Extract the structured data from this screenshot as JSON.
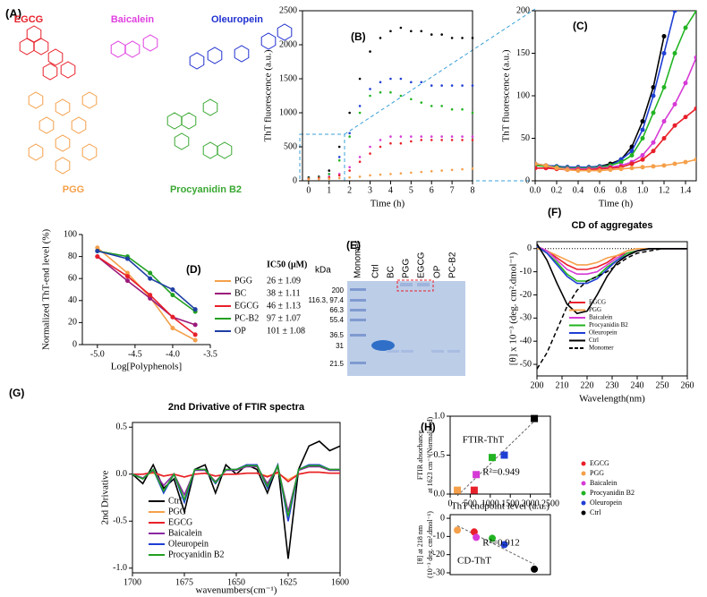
{
  "structures": {
    "label": "(A)",
    "names": [
      {
        "text": "EGCG",
        "color": "#e8202a"
      },
      {
        "text": "Baicalein",
        "color": "#e040e0"
      },
      {
        "text": "Oleuropein",
        "color": "#2030d0"
      },
      {
        "text": "PGG",
        "color": "#f5a04a"
      },
      {
        "text": "Procyanidin B2",
        "color": "#3aa832"
      }
    ]
  },
  "gel": {
    "label": "(E)",
    "unit": "kDa",
    "markers": [
      "200",
      "116.3, 97.4",
      "66.3",
      "55.4",
      "36.5",
      "31",
      "21.5"
    ],
    "lanes": [
      "Monomer",
      "Ctrl",
      "BC",
      "PGG",
      "EGCG",
      "OP",
      "PC-B2"
    ]
  },
  "chart_data": [
    {
      "type": "scatter",
      "label": "(B)",
      "xlabel": "Time (h)",
      "ylabel": "ThT fluorescence (a.u.)",
      "xlim": [
        -0.3,
        8
      ],
      "ylim": [
        0,
        2500
      ],
      "xticks": [
        0,
        1,
        2,
        3,
        4,
        5,
        6,
        7,
        8
      ],
      "yticks": [
        0,
        500,
        1000,
        1500,
        2000,
        2500
      ],
      "x": [
        0,
        0.5,
        1,
        1.5,
        2,
        2.5,
        3,
        3.5,
        4,
        4.5,
        5,
        5.5,
        6,
        6.5,
        7,
        7.5,
        8
      ],
      "series": [
        {
          "color": "#000000",
          "values": [
            50,
            60,
            150,
            500,
            1000,
            1500,
            1900,
            2100,
            2200,
            2250,
            2200,
            2200,
            2150,
            2150,
            2100,
            2100,
            2100
          ]
        },
        {
          "color": "#1f3fd4",
          "values": [
            40,
            50,
            100,
            350,
            700,
            1100,
            1350,
            1450,
            1500,
            1500,
            1450,
            1450,
            1400,
            1400,
            1400,
            1400,
            1400
          ]
        },
        {
          "color": "#22b422",
          "values": [
            40,
            50,
            100,
            300,
            650,
            1000,
            1250,
            1300,
            1300,
            1250,
            1200,
            1150,
            1100,
            1100,
            1050,
            1050,
            1000
          ]
        },
        {
          "color": "#d63ad6",
          "values": [
            30,
            40,
            60,
            100,
            200,
            350,
            500,
            600,
            650,
            650,
            650,
            650,
            650,
            650,
            650,
            650,
            650
          ]
        },
        {
          "color": "#e8202a",
          "values": [
            30,
            40,
            50,
            80,
            150,
            280,
            400,
            500,
            550,
            550,
            580,
            600,
            600,
            600,
            600,
            600,
            600
          ]
        },
        {
          "color": "#f5a04a",
          "values": [
            20,
            25,
            30,
            40,
            50,
            60,
            80,
            90,
            100,
            110,
            120,
            130,
            140,
            150,
            160,
            170,
            180
          ]
        }
      ]
    },
    {
      "type": "line",
      "label": "(C)",
      "xlabel": "Time (h)",
      "ylabel": "ThT fluorescence (a.u.)",
      "xlim": [
        0,
        1.5
      ],
      "ylim": [
        0,
        200
      ],
      "xticks": [
        {
          "value": 0,
          "label": "0.0"
        },
        0.2,
        0.4,
        0.6,
        0.8,
        {
          "value": 1,
          "label": "1.0"
        },
        1.2,
        1.4
      ],
      "yticks": [
        0,
        50,
        100,
        150,
        200
      ],
      "x": [
        0,
        0.1,
        0.2,
        0.3,
        0.4,
        0.5,
        0.6,
        0.7,
        0.8,
        0.9,
        1,
        1.1,
        1.2,
        1.3,
        1.4,
        1.5
      ],
      "series": [
        {
          "color": "#000000",
          "values": [
            20,
            18,
            17,
            16,
            16,
            16,
            17,
            20,
            25,
            40,
            70,
            110,
            170,
            null,
            null,
            null
          ]
        },
        {
          "color": "#1f3fd4",
          "values": [
            20,
            18,
            17,
            16,
            16,
            16,
            17,
            18,
            25,
            35,
            60,
            100,
            150,
            200,
            null,
            null
          ]
        },
        {
          "color": "#22b422",
          "values": [
            18,
            17,
            16,
            15,
            15,
            15,
            16,
            18,
            22,
            30,
            50,
            80,
            110,
            150,
            180,
            200
          ]
        },
        {
          "color": "#d63ad6",
          "values": [
            15,
            15,
            15,
            14,
            14,
            14,
            15,
            16,
            18,
            22,
            30,
            45,
            70,
            90,
            115,
            145
          ]
        },
        {
          "color": "#e8202a",
          "values": [
            15,
            15,
            14,
            13,
            13,
            13,
            14,
            15,
            16,
            20,
            25,
            35,
            50,
            65,
            75,
            85
          ]
        },
        {
          "color": "#f5a04a",
          "values": [
            20,
            18,
            15,
            13,
            12,
            12,
            12,
            13,
            14,
            15,
            16,
            17,
            18,
            20,
            22,
            25
          ]
        }
      ]
    },
    {
      "type": "line",
      "label": "(D)",
      "xlabel": "Log[Polyphenols]",
      "ylabel": "Normalized ThT-end level (%)",
      "xlim": [
        -5.2,
        -3.5
      ],
      "ylim": [
        0,
        100
      ],
      "xticks": [
        {
          "value": -5,
          "label": "-5.0"
        },
        -4.5,
        {
          "value": -4,
          "label": "-4.0"
        },
        -3.5
      ],
      "yticks": [
        0,
        20,
        40,
        60,
        80,
        100
      ],
      "ic50_title": "IC50 (μM)",
      "x": [
        -5,
        -4.6,
        -4.3,
        -4,
        -3.7
      ],
      "series": [
        {
          "name": "PGG",
          "ic50": "26 ± 1.09",
          "color": "#f5a04a",
          "values": [
            88,
            65,
            43,
            15,
            4
          ]
        },
        {
          "name": "BC",
          "ic50": "38 ± 1.11",
          "color": "#9a1a7a",
          "values": [
            80,
            58,
            42,
            25,
            18
          ]
        },
        {
          "name": "EGCG",
          "ic50": "46 ± 1.13",
          "color": "#e8202a",
          "values": [
            80,
            62,
            45,
            25,
            9
          ]
        },
        {
          "name": "PC-B2",
          "ic50": "97 ± 1.07",
          "color": "#22a022",
          "values": [
            85,
            80,
            65,
            45,
            30
          ]
        },
        {
          "name": "OP",
          "ic50": "101 ± 1.08",
          "color": "#1f3fa4",
          "values": [
            85,
            78,
            60,
            50,
            32
          ]
        }
      ]
    },
    {
      "type": "line",
      "label": "(F)",
      "title": "CD of aggregates",
      "xlabel": "Wavelength(nm)",
      "ylabel": "[θ] x 10⁻³ (deg. cm².dmol⁻¹)",
      "xlim": [
        200,
        260
      ],
      "ylim": [
        -55,
        3
      ],
      "zero_line": true,
      "xticks": [
        200,
        210,
        220,
        230,
        240,
        250,
        260
      ],
      "yticks": [
        0,
        -10,
        -20,
        -30,
        -40,
        -50
      ],
      "x": [
        200,
        204,
        208,
        212,
        216,
        220,
        224,
        228,
        232,
        236,
        240,
        245,
        250,
        255,
        260
      ],
      "series": [
        {
          "name": "EGCG",
          "color": "#e8202a",
          "values": [
            1,
            -1,
            -4,
            -7,
            -9,
            -9,
            -8,
            -6,
            -3,
            -2,
            -1,
            0,
            0,
            0,
            0
          ]
        },
        {
          "name": "PGG",
          "color": "#f5a04a",
          "values": [
            0,
            -1,
            -3,
            -5,
            -7,
            -7,
            -6,
            -4,
            -3,
            -1,
            0,
            0,
            0,
            0,
            0
          ]
        },
        {
          "name": "Baicalein",
          "color": "#d63ad6",
          "values": [
            1,
            -1,
            -5,
            -9,
            -11,
            -11,
            -10,
            -7,
            -4,
            -2,
            -1,
            0,
            0,
            0,
            0
          ]
        },
        {
          "name": "Procyanidin B2",
          "color": "#22b422",
          "values": [
            1,
            -2,
            -6,
            -11,
            -14,
            -14,
            -12,
            -8,
            -5,
            -2,
            -1,
            0,
            0,
            0,
            0
          ]
        },
        {
          "name": "Oleuropein",
          "color": "#1f3fd4",
          "values": [
            1,
            -2,
            -7,
            -12,
            -15,
            -15,
            -13,
            -9,
            -5,
            -3,
            -1,
            0,
            0,
            0,
            0
          ]
        },
        {
          "name": "Ctrl",
          "color": "#000000",
          "values": [
            2,
            -5,
            -15,
            -24,
            -28,
            -27,
            -20,
            -12,
            -6,
            -3,
            -1,
            0,
            0,
            0,
            0
          ]
        },
        {
          "name": "Monomer",
          "color": "#000000",
          "dash": true,
          "values": [
            -52,
            -45,
            -35,
            -25,
            -18,
            -14,
            -12,
            -10,
            -7,
            -4,
            -2,
            -1,
            0,
            0,
            0
          ]
        }
      ]
    },
    {
      "type": "line",
      "label": "(G)",
      "title": "2nd Drivative of FTIR spectra",
      "xlabel": "wavenumbers(cm⁻¹)",
      "ylabel": "2nd Drivative",
      "xlim": [
        1700,
        1600
      ],
      "ylim": [
        -1.05,
        0.55
      ],
      "xticks": [
        1700,
        1675,
        1650,
        1625,
        1600
      ],
      "yticks": [
        {
          "value": -1,
          "label": "-1.0"
        },
        -0.5,
        {
          "value": 0,
          "label": "0.0"
        },
        0.5
      ],
      "x": [
        1700,
        1695,
        1690,
        1685,
        1680,
        1675,
        1670,
        1665,
        1660,
        1655,
        1650,
        1645,
        1640,
        1635,
        1630,
        1625,
        1620,
        1615,
        1610,
        1605,
        1600
      ],
      "series": [
        {
          "name": "Ctrl",
          "color": "#000000",
          "values": [
            0,
            -0.1,
            0.1,
            -0.15,
            -0.05,
            -0.4,
            0.05,
            0.1,
            -0.2,
            0.1,
            0,
            0.1,
            0.05,
            -0.2,
            0.1,
            -0.9,
            0.05,
            0.3,
            0.35,
            0.25,
            0.3
          ]
        },
        {
          "name": "PGG",
          "color": "#f5a04a",
          "values": [
            0,
            0,
            0.01,
            -0.02,
            0,
            -0.03,
            0,
            0.01,
            -0.02,
            0,
            0,
            0.01,
            0.01,
            -0.02,
            0.01,
            -0.06,
            0,
            0.02,
            0.02,
            0.01,
            0.01
          ]
        },
        {
          "name": "EGCG",
          "color": "#e8202a",
          "values": [
            0,
            0,
            0.02,
            -0.02,
            0,
            -0.03,
            0,
            0.01,
            -0.02,
            0,
            0,
            0.01,
            0.01,
            -0.03,
            0.02,
            -0.08,
            0,
            0.02,
            0.02,
            0.01,
            0.01
          ]
        },
        {
          "name": "Baicalein",
          "color": "#8a2aa0",
          "values": [
            0,
            -0.04,
            0.04,
            -0.12,
            0,
            -0.22,
            0.04,
            0.04,
            -0.08,
            0.04,
            0.04,
            0.08,
            0.08,
            -0.1,
            0.08,
            -0.4,
            0.04,
            0.08,
            0.08,
            0.04,
            0.04
          ]
        },
        {
          "name": "Oleuropein",
          "color": "#1f3fd4",
          "values": [
            0,
            -0.05,
            0.05,
            -0.2,
            0,
            -0.3,
            0.05,
            0.05,
            -0.1,
            0.05,
            0.05,
            0.1,
            0.1,
            -0.15,
            0.1,
            -0.5,
            0.05,
            0.1,
            0.1,
            0.05,
            0.05
          ]
        },
        {
          "name": "Procyanidin B2",
          "color": "#22a022",
          "values": [
            0,
            -0.05,
            0.05,
            -0.18,
            0,
            -0.27,
            0.05,
            0.05,
            -0.09,
            0.05,
            0.05,
            0.09,
            0.09,
            -0.13,
            0.09,
            -0.45,
            0.05,
            0.09,
            0.09,
            0.05,
            0.05
          ]
        }
      ]
    },
    {
      "type": "scatter",
      "label": "(H)",
      "marker": "square",
      "fit": true,
      "xlabel": "ThT endpoint level (a.u.)",
      "ylabel": [
        "FTIR absorbance",
        "at 1623 cm⁻¹(Normalized)"
      ],
      "annotations": [
        "FTIR-ThT",
        "R²=0.949"
      ],
      "xlim": [
        0,
        2500
      ],
      "ylim": [
        0,
        1
      ],
      "xticks": [
        0,
        500,
        1000,
        1500,
        2000,
        2500
      ],
      "yticks": [
        {
          "value": 0,
          "label": "0.0"
        },
        0.5,
        {
          "value": 1,
          "label": "1.0"
        }
      ],
      "series": [
        {
          "color": "#e8202a",
          "x": [
            600
          ],
          "values": [
            0.05
          ]
        },
        {
          "color": "#f5a04a",
          "x": [
            180
          ],
          "values": [
            0.05
          ]
        },
        {
          "color": "#d63ad6",
          "x": [
            650
          ],
          "values": [
            0.25
          ]
        },
        {
          "color": "#22b422",
          "x": [
            1050
          ],
          "values": [
            0.47
          ]
        },
        {
          "color": "#1f3fd4",
          "x": [
            1350
          ],
          "values": [
            0.5
          ]
        },
        {
          "color": "#000000",
          "x": [
            2100
          ],
          "values": [
            0.97
          ]
        }
      ]
    },
    {
      "type": "scatter",
      "marker": "circle",
      "fit": true,
      "ylabel": [
        "[θ] at 218 nm",
        "(10⁻³ deg. cm².dmol⁻¹)"
      ],
      "annotations": [
        "R²=0.912",
        "CD-ThT"
      ],
      "xlim": [
        0,
        2500
      ],
      "ylim": [
        -31,
        2
      ],
      "yticks": [
        0,
        -10,
        -20,
        -30
      ],
      "series": [
        {
          "name": "EGCG",
          "color": "#e8202a",
          "x": [
            600
          ],
          "values": [
            -7.5
          ]
        },
        {
          "name": "PGG",
          "color": "#f5a04a",
          "x": [
            180
          ],
          "values": [
            -6.5
          ]
        },
        {
          "name": "Baicalein",
          "color": "#d63ad6",
          "x": [
            650
          ],
          "values": [
            -10.5
          ]
        },
        {
          "name": "Procyanidin B2",
          "color": "#22b422",
          "x": [
            1050
          ],
          "values": [
            -11
          ]
        },
        {
          "name": "Oleuropein",
          "color": "#1f3fd4",
          "x": [
            1350
          ],
          "values": [
            -14.5
          ]
        },
        {
          "name": "Ctrl",
          "color": "#000000",
          "x": [
            2100
          ],
          "values": [
            -28
          ]
        }
      ]
    }
  ]
}
